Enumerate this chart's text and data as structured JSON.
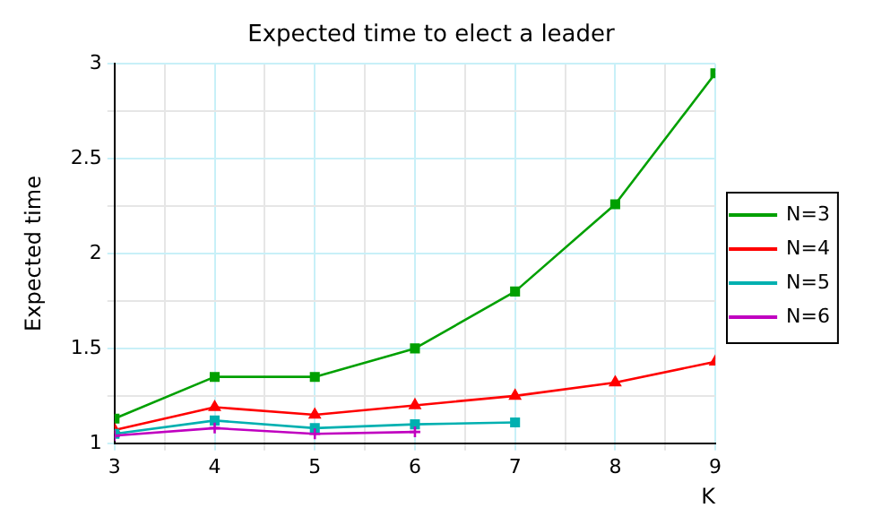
{
  "chart_data": {
    "type": "line",
    "title": "Expected time to elect a leader",
    "xlabel": "K",
    "ylabel": "Expected time",
    "x": [
      3,
      4,
      5,
      6,
      7,
      8,
      9
    ],
    "series": [
      {
        "name": "N=3",
        "color": "#00a000",
        "marker": "square",
        "values": [
          1.13,
          1.35,
          1.35,
          1.5,
          1.8,
          2.26,
          2.95
        ]
      },
      {
        "name": "N=4",
        "color": "#ff0000",
        "marker": "triangle",
        "values": [
          1.07,
          1.19,
          1.15,
          1.2,
          1.25,
          1.32,
          1.43
        ]
      },
      {
        "name": "N=5",
        "color": "#00b0b0",
        "marker": "square",
        "values": [
          1.05,
          1.12,
          1.08,
          1.1,
          1.11,
          null,
          null
        ]
      },
      {
        "name": "N=6",
        "color": "#c000c0",
        "marker": "cross",
        "values": [
          1.04,
          1.08,
          1.05,
          1.06,
          null,
          null,
          null
        ]
      }
    ],
    "xlim": [
      3,
      9
    ],
    "xticks": [
      3,
      {
        "value": 3.5,
        "label": null
      },
      4,
      {
        "value": 4.5,
        "label": null
      },
      5,
      {
        "value": 5.5,
        "label": null
      },
      6,
      {
        "value": 6.5,
        "label": null
      },
      7,
      {
        "value": 7.5,
        "label": null
      },
      8,
      {
        "value": 8.5,
        "label": null
      },
      9
    ],
    "ylim": [
      1,
      3
    ],
    "yticks": [
      1,
      {
        "value": 1.25,
        "label": null
      },
      1.5,
      {
        "value": 1.75,
        "label": null
      },
      2,
      {
        "value": 2.25,
        "label": null
      },
      2.5,
      {
        "value": 2.75,
        "label": null
      },
      3
    ],
    "grid": true,
    "legend": "right"
  }
}
